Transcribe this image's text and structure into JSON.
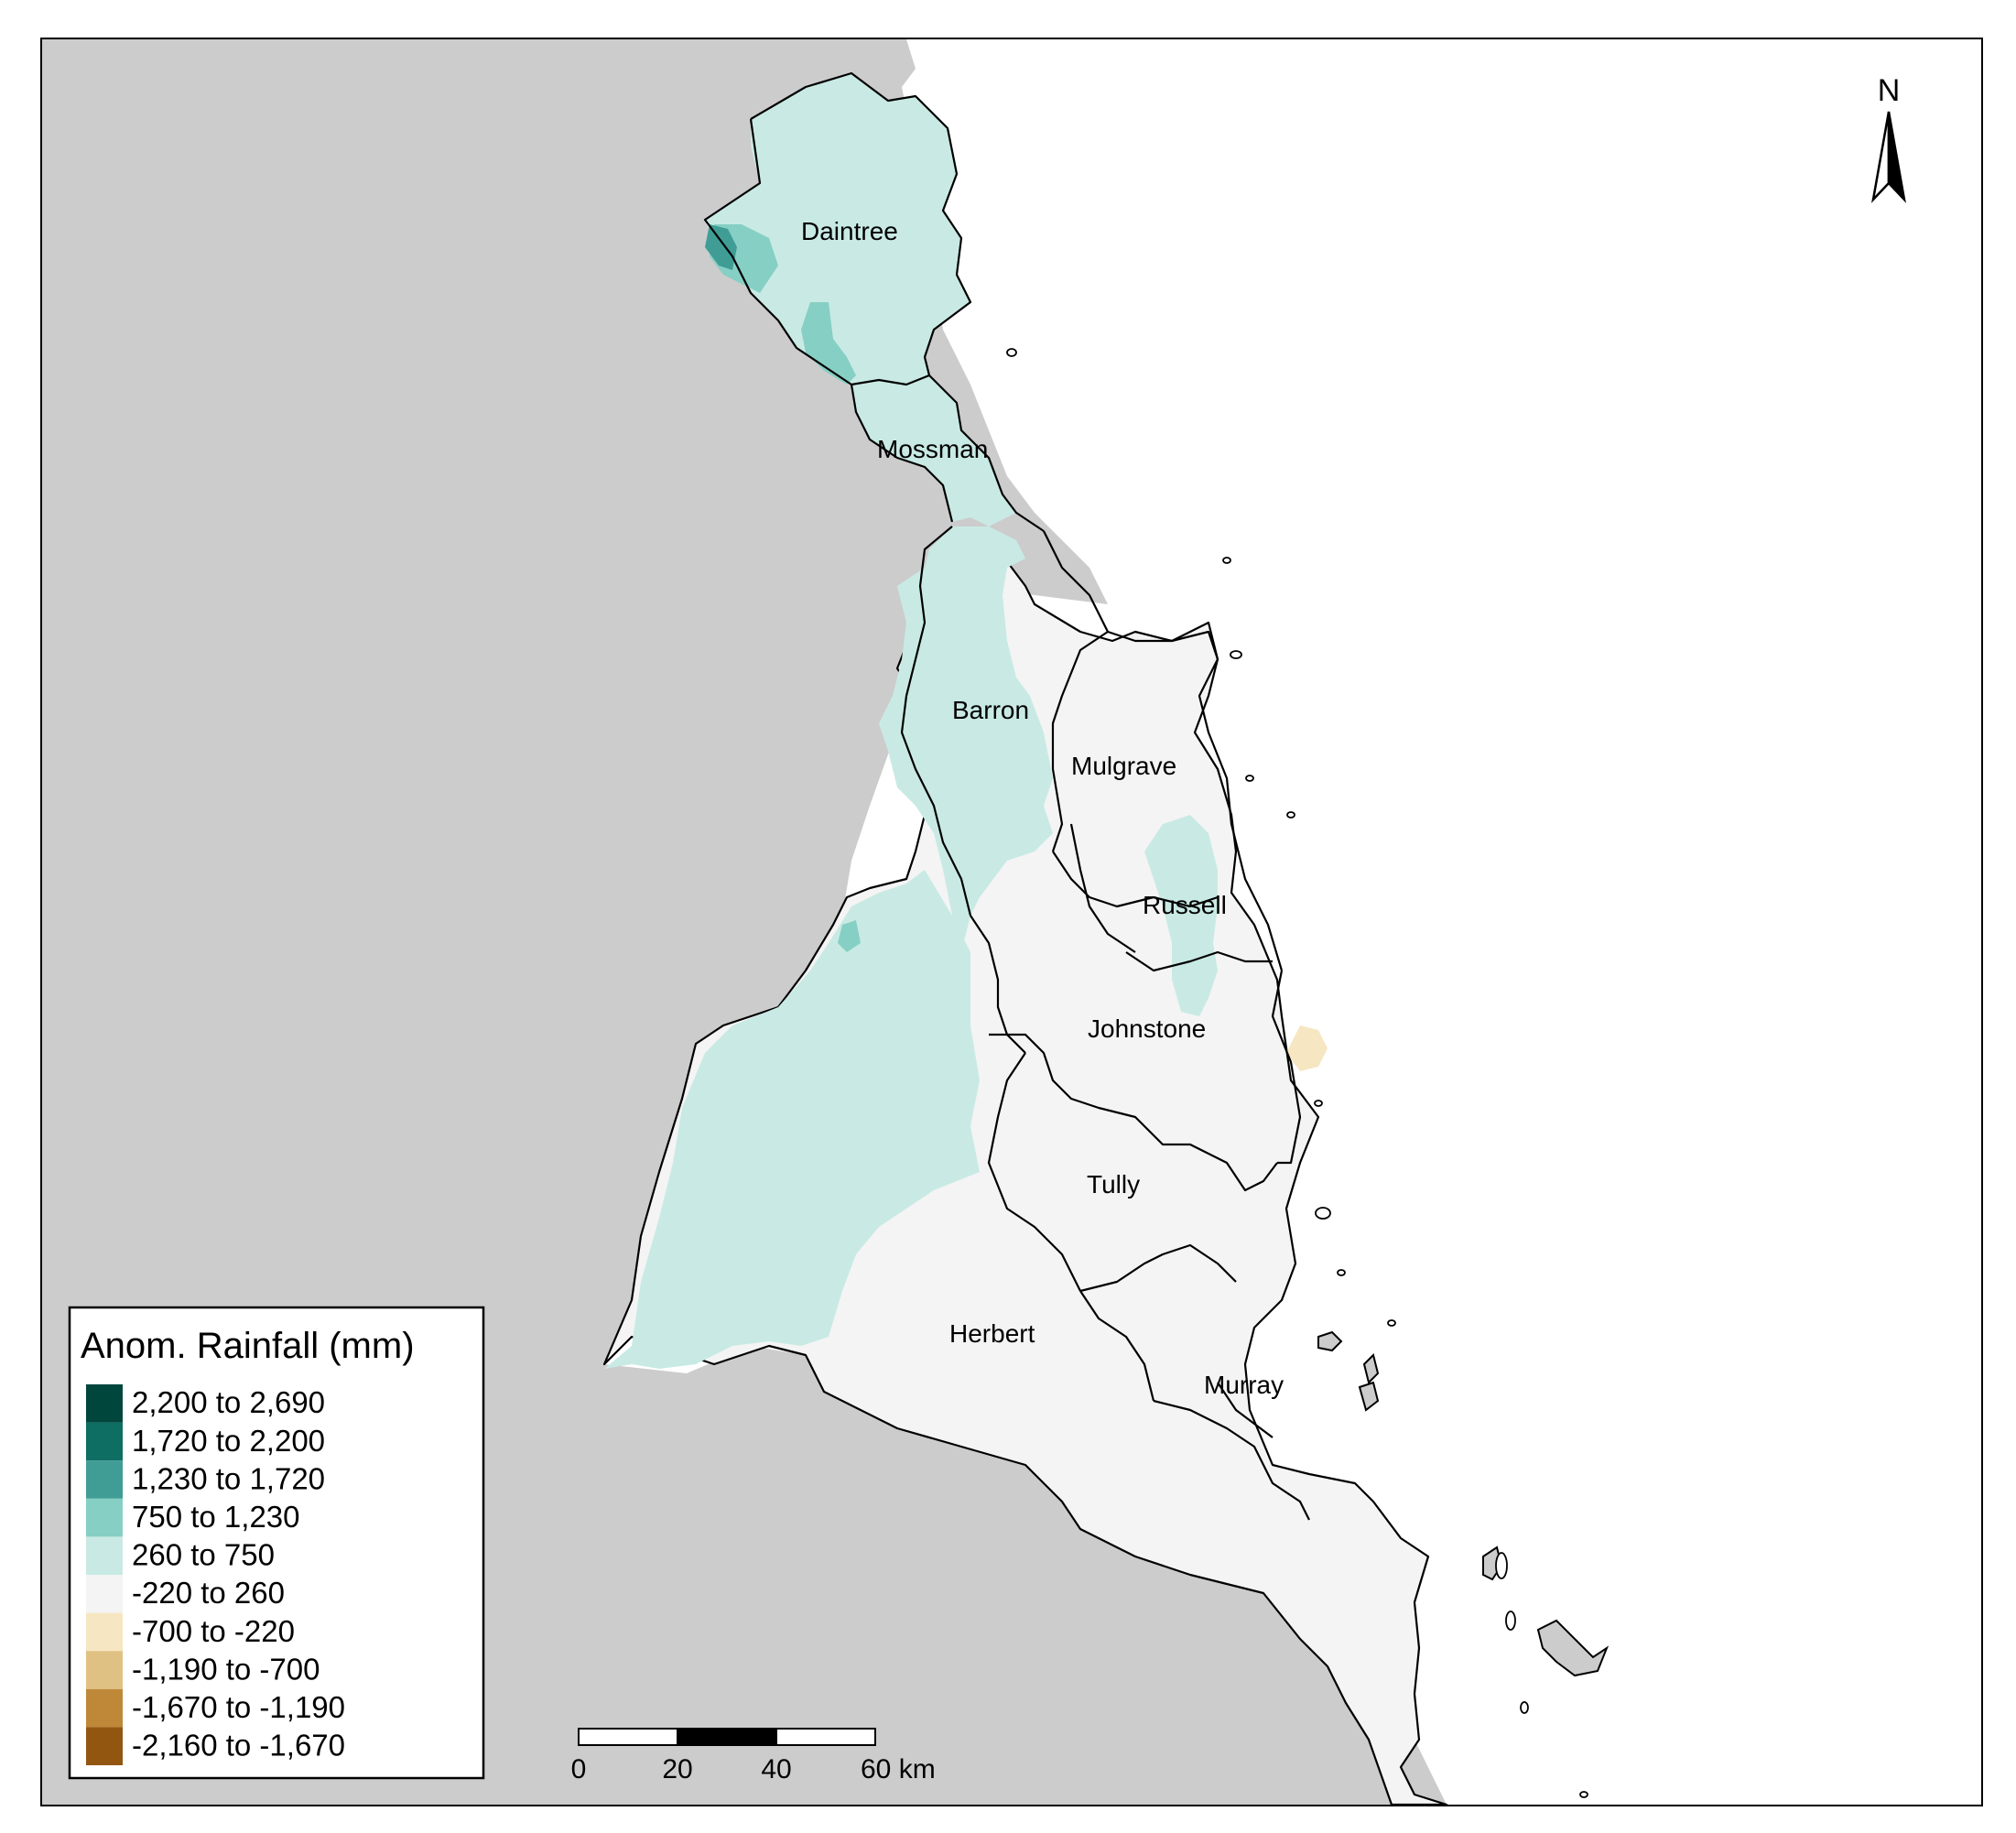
{
  "map": {
    "north_label": "N",
    "catchments": [
      {
        "name": "Daintree"
      },
      {
        "name": "Mossman"
      },
      {
        "name": "Barron"
      },
      {
        "name": "Mulgrave"
      },
      {
        "name": "Russell"
      },
      {
        "name": "Johnstone"
      },
      {
        "name": "Tully"
      },
      {
        "name": "Herbert"
      },
      {
        "name": "Murray"
      }
    ],
    "colors": {
      "outside_land": "#cccccc",
      "sea": "#ffffff",
      "neutral": "#f4f4f4",
      "positive_light": "#c9eae4",
      "positive_mid": "#86cfc4",
      "positive_strong": "#3f9d96",
      "dry_light": "#f6e6c2"
    }
  },
  "legend": {
    "title": "Anom. Rainfall (mm)",
    "items": [
      {
        "label": "2,200 to 2,690",
        "color": "#01463d"
      },
      {
        "label": "1,720 to 2,200",
        "color": "#0e6e63"
      },
      {
        "label": "1,230 to 1,720",
        "color": "#3f9d96"
      },
      {
        "label": "750 to 1,230",
        "color": "#86cfc4"
      },
      {
        "label": "260 to 750",
        "color": "#c9eae4"
      },
      {
        "label": "-220 to 260",
        "color": "#f4f4f4"
      },
      {
        "label": "-700 to -220",
        "color": "#f6e6c2"
      },
      {
        "label": "-1,190 to -700",
        "color": "#dfc283"
      },
      {
        "label": "-1,670 to -1,190",
        "color": "#bf8839"
      },
      {
        "label": "-2,160 to -1,670",
        "color": "#935611"
      }
    ]
  },
  "scale_bar": {
    "ticks": [
      "0",
      "20",
      "40",
      "60 km"
    ]
  }
}
